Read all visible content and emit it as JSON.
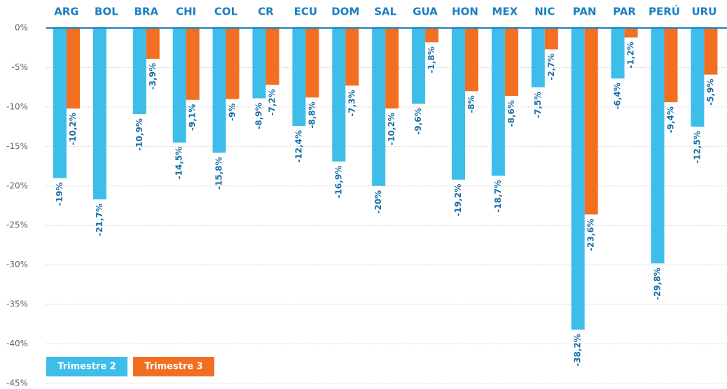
{
  "chart_data": {
    "type": "bar",
    "categories": [
      "ARG",
      "BOL",
      "BRA",
      "CHI",
      "COL",
      "CR",
      "ECU",
      "DOM",
      "SAL",
      "GUA",
      "HON",
      "MEX",
      "NIC",
      "PAN",
      "PAR",
      "PERÚ",
      "URU"
    ],
    "series": [
      {
        "name": "Trimestre 2",
        "color": "#3dbdea",
        "values": [
          -19,
          -21.7,
          -10.9,
          -14.5,
          -15.8,
          -8.9,
          -12.4,
          -16.9,
          -20,
          -9.6,
          -19.2,
          -18.7,
          -7.5,
          -38.2,
          -6.4,
          -29.8,
          -12.5
        ],
        "value_labels": [
          "-19%",
          "-21,7%",
          "-10,9%",
          "-14,5%",
          "-15,8%",
          "-8,9%",
          "-12,4%",
          "-16,9%",
          "-20%",
          "-9,6%",
          "-19,2%",
          "-18,7%",
          "-7,5%",
          "-38,2%",
          "-6,4%",
          "-29,8%",
          "-12,5%"
        ]
      },
      {
        "name": "Trimestre 3",
        "color": "#f26f21",
        "values": [
          -10.2,
          null,
          -3.9,
          -9.1,
          -9,
          -7.2,
          -8.8,
          -7.3,
          -10.2,
          -1.8,
          -8,
          -8.6,
          -2.7,
          -23.6,
          -1.2,
          -9.4,
          -5.9
        ],
        "value_labels": [
          "-10,2%",
          null,
          "-3,9%",
          "-9,1%",
          "-9%",
          "-7,2%",
          "-8,8%",
          "-7,3%",
          "-10,2%",
          "-1,8%",
          "-8%",
          "-8,6%",
          "-2,7%",
          "-23,6%",
          "-1,2%",
          "-9,4%",
          "-5,9%"
        ]
      }
    ],
    "ylim": [
      -45,
      0
    ],
    "yticks": [
      {
        "value": 0,
        "label": "0%"
      },
      {
        "value": -5,
        "label": "-5%"
      },
      {
        "value": -10,
        "label": "-10%"
      },
      {
        "value": -15,
        "label": "-15%"
      },
      {
        "value": -20,
        "label": "-20%"
      },
      {
        "value": -25,
        "label": "-25%"
      },
      {
        "value": -30,
        "label": "-30%"
      },
      {
        "value": -35,
        "label": "-35%"
      },
      {
        "value": -40,
        "label": "-40%"
      },
      {
        "value": -45,
        "label": "-45%"
      }
    ],
    "grid": true,
    "legend": "bottom-left"
  }
}
